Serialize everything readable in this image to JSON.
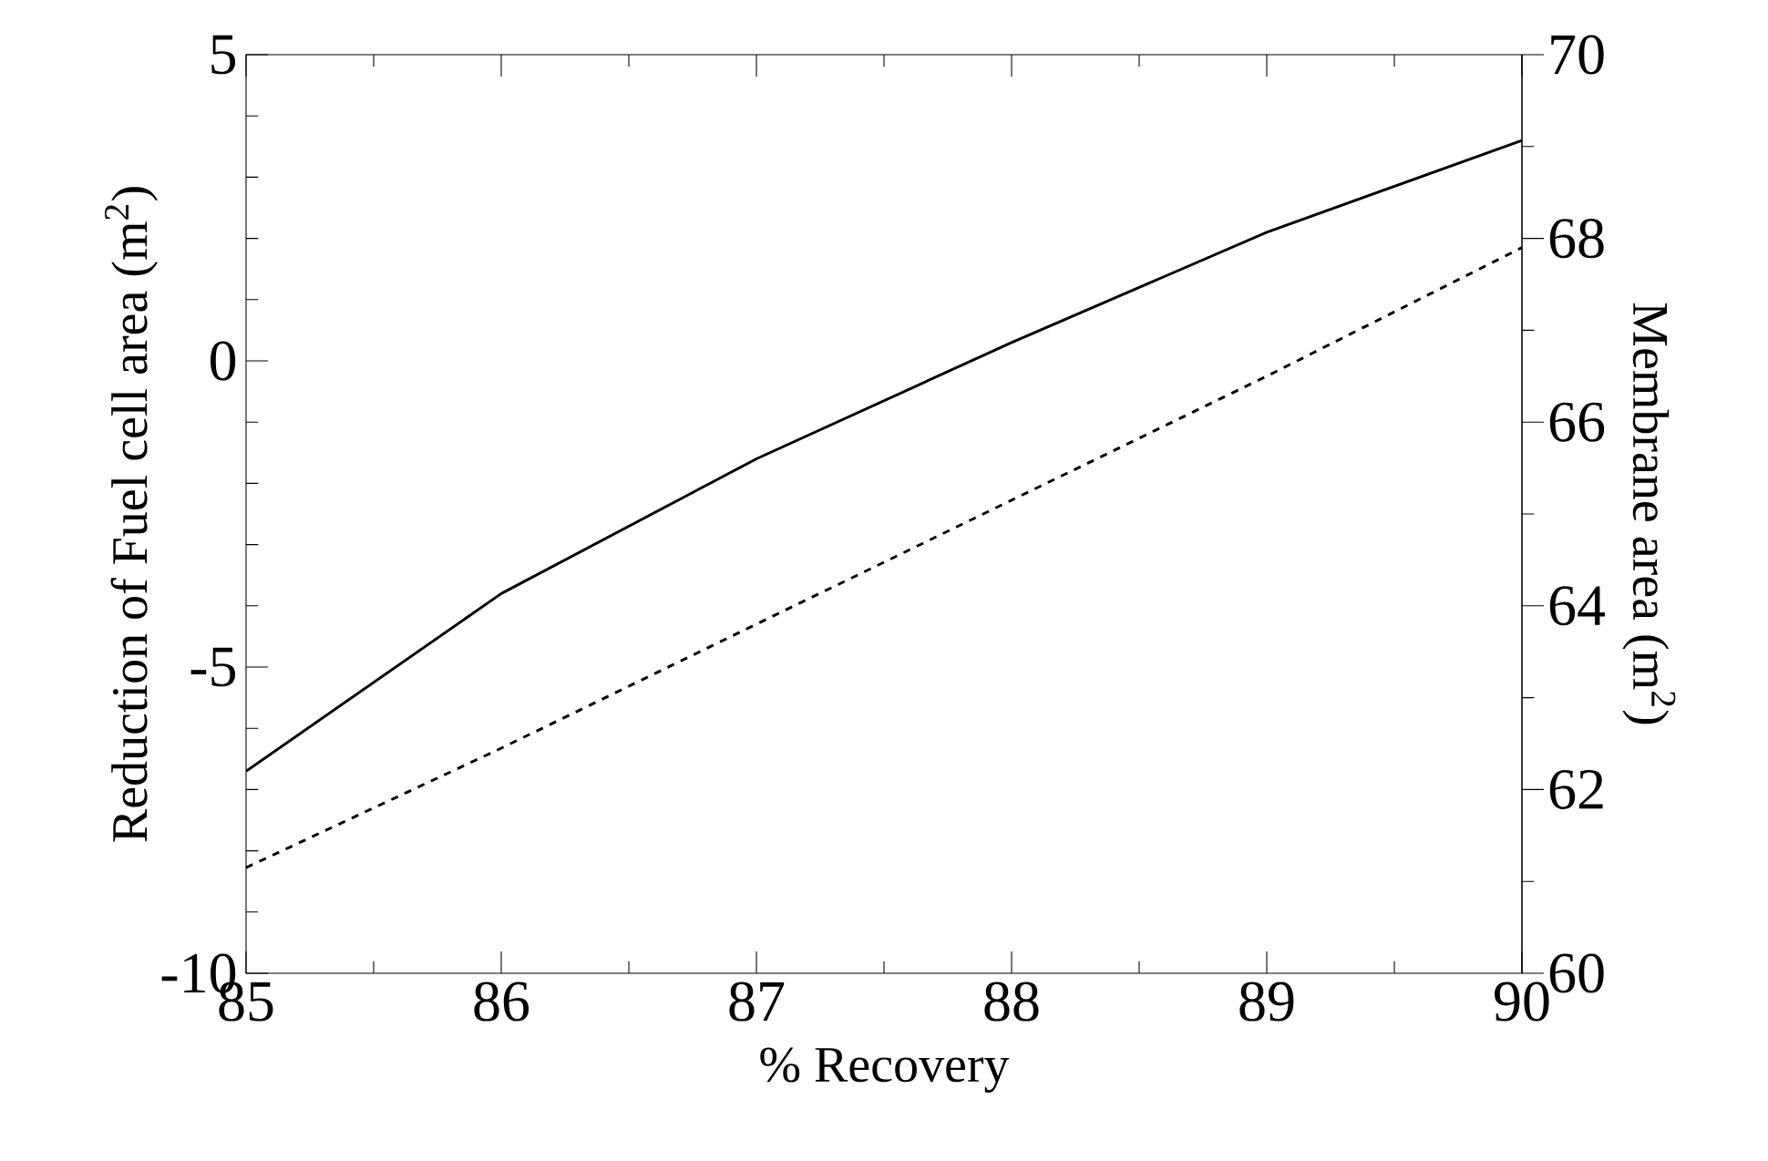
{
  "chart_data": {
    "type": "line",
    "xlabel": "% Recovery",
    "ylabel": "Reduction of Fuel cell area (m$^{2}$)",
    "y2label": "Membrane area (m$^{2}$)",
    "x": [
      85,
      86,
      87,
      88,
      89,
      90
    ],
    "xlim": [
      85,
      90
    ],
    "xticks": [
      85,
      86,
      87,
      88,
      89,
      90
    ],
    "ylim": [
      -10,
      5
    ],
    "yticks": [
      -10,
      -5,
      0,
      5
    ],
    "y2lim": [
      60,
      70
    ],
    "y2ticks": [
      60,
      62,
      64,
      66,
      68,
      70
    ],
    "grid": false,
    "marker": "none",
    "series": [
      {
        "color": "#000000",
        "line_style": "solid",
        "values": [
          -6.7,
          -3.8,
          -1.6,
          0.3,
          2.1,
          3.6
        ]
      },
      {
        "color": "#000000",
        "line_style": "dashed",
        "axis": "y2",
        "values": [
          61.15,
          62.45,
          63.8,
          65.15,
          66.5,
          67.9
        ]
      }
    ]
  }
}
